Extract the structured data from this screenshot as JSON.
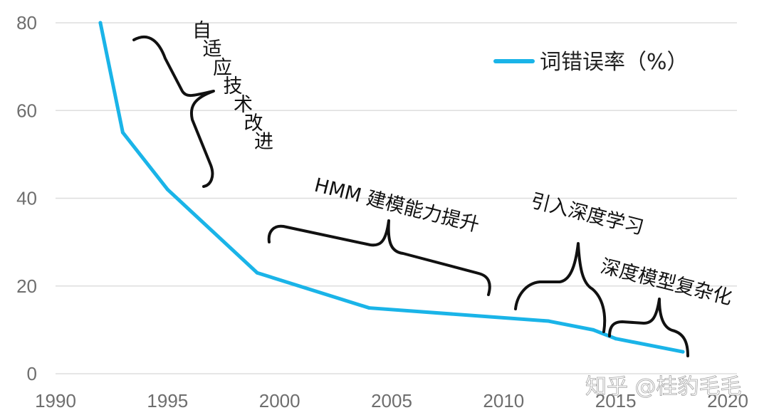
{
  "chart_data": {
    "type": "line",
    "x": [
      1992,
      1993,
      1995,
      1999,
      2004,
      2012,
      2014,
      2015,
      2018
    ],
    "series": [
      {
        "name": "词错误率（%）",
        "values": [
          80,
          55,
          42,
          23,
          15,
          12,
          10,
          8,
          5
        ],
        "color": "#1ab4e8"
      }
    ],
    "xlim": [
      1990,
      2020
    ],
    "ylim": [
      0,
      80
    ],
    "x_ticks": [
      "1990",
      "1995",
      "2000",
      "2005",
      "2010",
      "2015",
      "2020"
    ],
    "y_ticks": [
      "0",
      "20",
      "40",
      "60",
      "80"
    ],
    "grid": "horizontal",
    "legend_position": "top-right",
    "annotations": [
      {
        "id": "adaptive",
        "text": "自适应技术改进"
      },
      {
        "id": "hmm",
        "text": "HMM 建模能力提升"
      },
      {
        "id": "dl",
        "text": "引入深度学习"
      },
      {
        "id": "complex",
        "text": "深度模型复杂化"
      }
    ]
  },
  "watermark": "知乎 @桂豹毛毛"
}
